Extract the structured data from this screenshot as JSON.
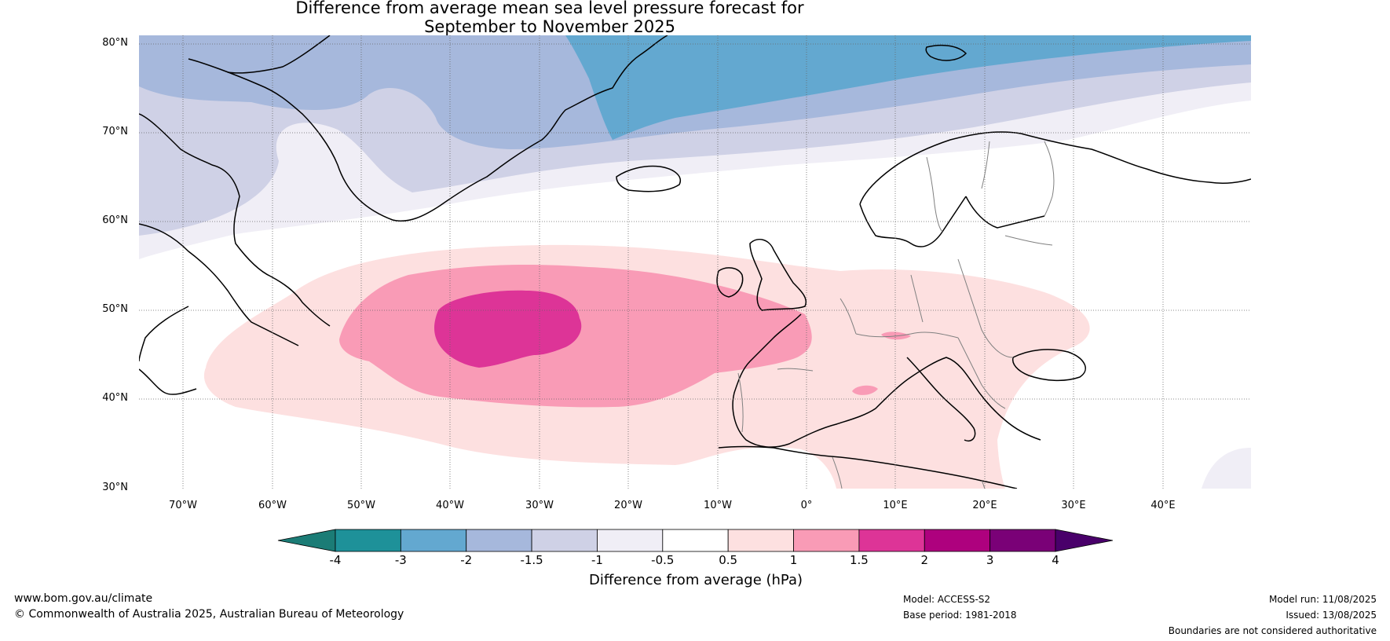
{
  "title": {
    "line1": "Difference from average mean sea level pressure forecast for",
    "line2": "September to November 2025"
  },
  "map": {
    "lat_labels": [
      "80°N",
      "70°N",
      "60°N",
      "50°N",
      "40°N",
      "30°N"
    ],
    "lon_labels": [
      "70°W",
      "60°W",
      "50°W",
      "40°W",
      "30°W",
      "20°W",
      "10°W",
      "0°",
      "10°E",
      "20°E",
      "30°E",
      "40°E"
    ],
    "extent": {
      "lon_min": -75,
      "lon_max": 50,
      "lat_min": 30,
      "lat_max": 81
    },
    "gridlines": true
  },
  "colorbar": {
    "ticks": [
      "-4",
      "-3",
      "-2",
      "-1.5",
      "-1",
      "-0.5",
      "0.5",
      "1",
      "1.5",
      "2",
      "3",
      "4"
    ],
    "colors": [
      "#1b7c76",
      "#1e9199",
      "#63a8d0",
      "#a6b8dc",
      "#cfd1e6",
      "#f0eef6",
      "#ffffff",
      "#fde0e0",
      "#f99bb6",
      "#dd3497",
      "#ae017e",
      "#7a0177",
      "#49006a"
    ],
    "label": "Difference from average (hPa)"
  },
  "footer": {
    "website": "www.bom.gov.au/climate",
    "copyright": "© Commonwealth of Australia 2025, Australian Bureau of Meteorology",
    "model": "Model: ACCESS-S2",
    "base_period": "Base period: 1981-2018",
    "model_run": "Model run: 11/08/2025",
    "issued": "Issued: 13/08/2025",
    "disclaimer": "Boundaries are not considered authoritative"
  }
}
